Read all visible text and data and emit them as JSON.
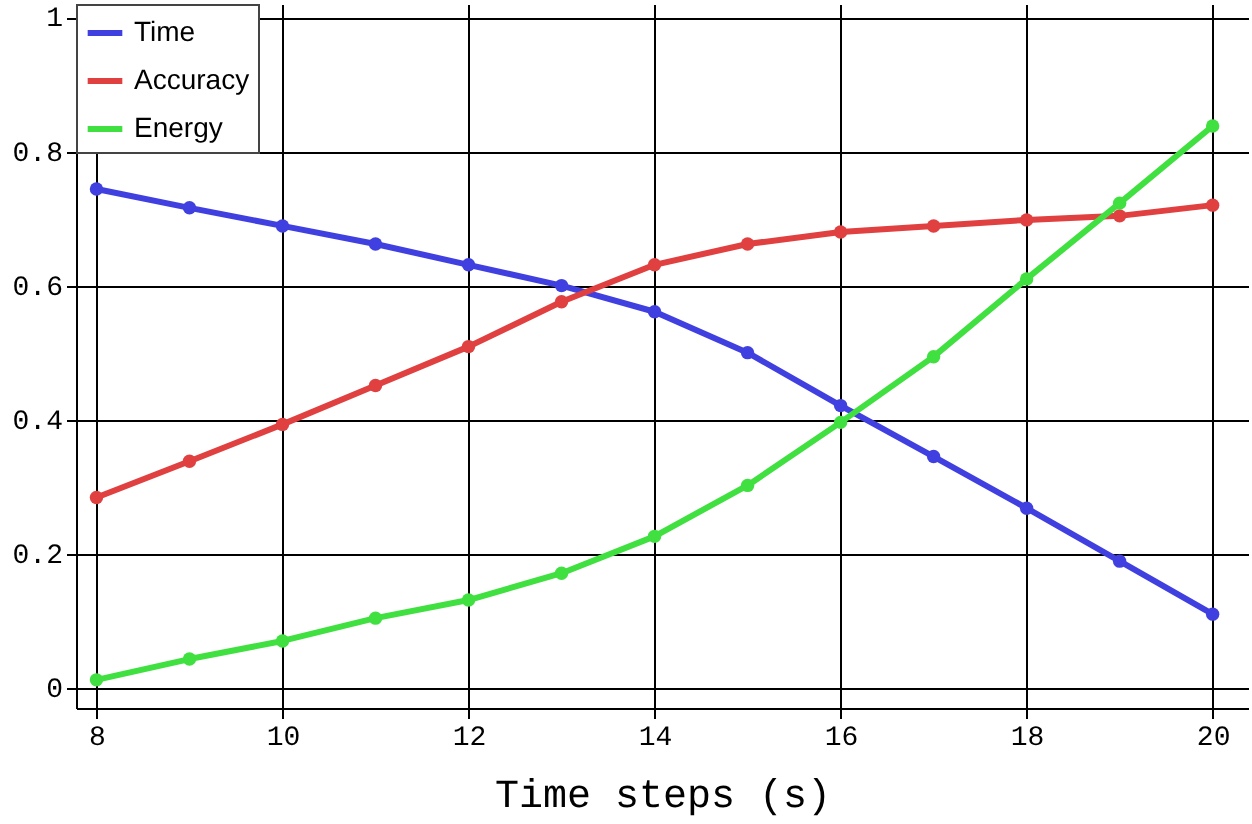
{
  "chart_data": {
    "type": "line",
    "xlabel": "Time steps (s)",
    "x": [
      8,
      9,
      10,
      11,
      12,
      13,
      14,
      15,
      16,
      17,
      18,
      19,
      20
    ],
    "series": [
      {
        "name": "Time",
        "color": "#4040e0",
        "values": [
          0.744,
          0.716,
          0.689,
          0.662,
          0.631,
          0.6,
          0.561,
          0.5,
          0.421,
          0.345,
          0.268,
          0.189,
          0.11
        ]
      },
      {
        "name": "Accuracy",
        "color": "#e04040",
        "values": [
          0.284,
          0.338,
          0.393,
          0.451,
          0.509,
          0.576,
          0.631,
          0.662,
          0.68,
          0.689,
          0.698,
          0.704,
          0.72
        ]
      },
      {
        "name": "Energy",
        "color": "#40e040",
        "values": [
          0.012,
          0.043,
          0.07,
          0.104,
          0.131,
          0.171,
          0.226,
          0.302,
          0.396,
          0.494,
          0.61,
          0.723,
          0.838
        ]
      }
    ],
    "xlim": [
      7.78,
      20.38
    ],
    "xticks": [
      8,
      10,
      12,
      14,
      16,
      18,
      20
    ],
    "ylim": [
      -0.03,
      1.02
    ],
    "yticks": [
      0,
      0.2,
      0.4,
      0.6,
      0.8,
      1
    ],
    "grid": true,
    "legend": "top left",
    "marker": "circle",
    "line_style": "solid"
  }
}
